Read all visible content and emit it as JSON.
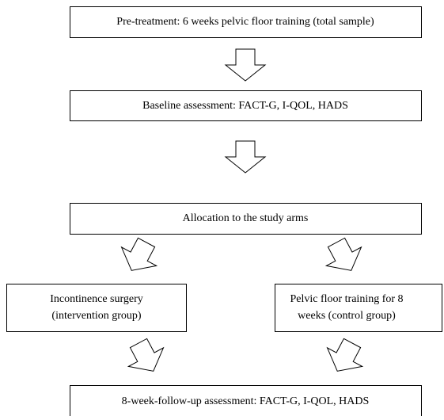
{
  "nodes": [
    {
      "lines": [
        "Pre-treatment: 6 weeks pelvic floor training (total sample)"
      ]
    },
    {
      "lines": [
        "Baseline assessment: FACT-G, I-QOL, HADS"
      ]
    },
    {
      "lines": [
        "Allocation to the study arms"
      ]
    },
    {
      "lines": [
        "Incontinence surgery",
        "(intervention group)"
      ]
    },
    {
      "lines": [
        "Pelvic floor training for 8",
        "weeks (control group)"
      ]
    },
    {
      "lines": [
        "8-week-follow-up assessment: FACT-G, I-QOL, HADS"
      ]
    }
  ]
}
